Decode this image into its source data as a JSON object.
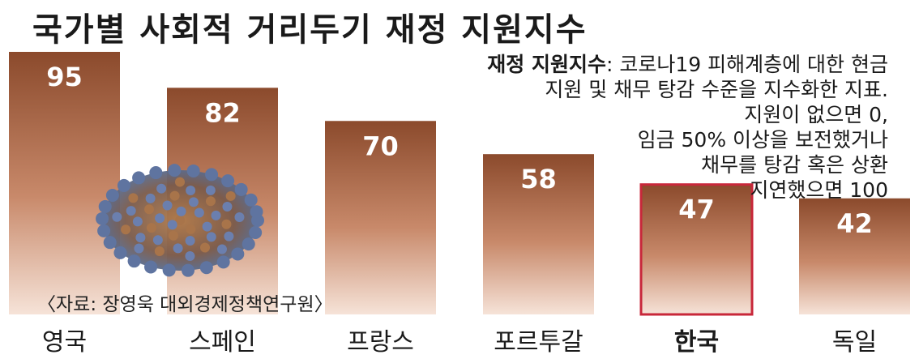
{
  "title": "국가별 사회적 거리두기 재정 지원지수",
  "note": {
    "label": "재정 지원지수",
    "lines": [
      ": 코로나19 피해계층에 대한 현금",
      "지원 및 채무 탕감 수준을 지수화한 지표.",
      "지원이 없으면 0,",
      "임금 50% 이상을 보전했거나",
      "채무를 탕감 혹은 상환",
      "지연했으면 100"
    ]
  },
  "source": "〈자료: 장영욱 대외경제정책연구원〉",
  "colors": {
    "bar_top": "#8b4a2c",
    "bar_bottom": "#f6e3d8",
    "highlight_border": "#c8273a",
    "value_text": "#ffffff"
  },
  "chart_data": {
    "type": "bar",
    "categories": [
      "영국",
      "스페인",
      "프랑스",
      "포르투갈",
      "한국",
      "독일"
    ],
    "values": [
      95,
      82,
      70,
      58,
      47,
      42
    ],
    "highlight": "한국",
    "ylim": [
      0,
      100
    ],
    "grid": false,
    "title": "국가별 사회적 거리두기 재정 지원지수"
  }
}
